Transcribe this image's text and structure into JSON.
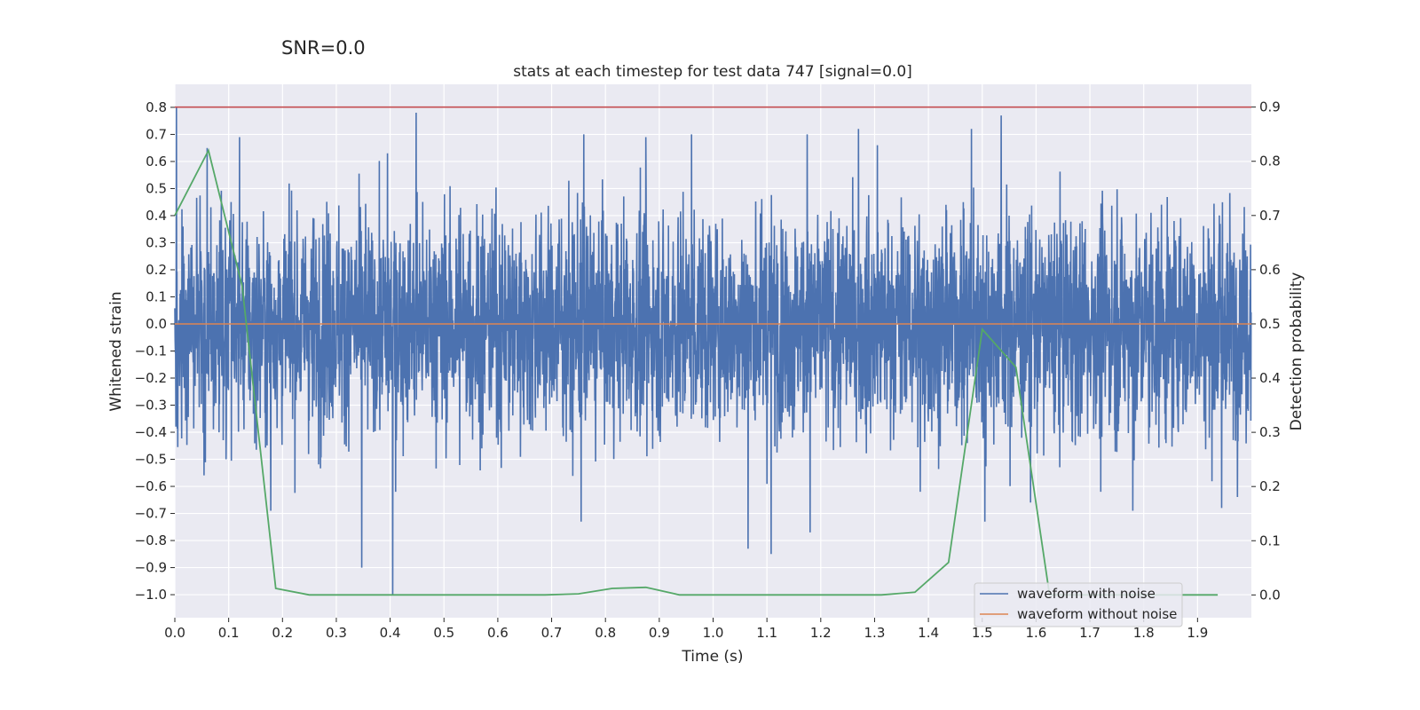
{
  "figure": {
    "suptitle": "SNR=0.0",
    "title": "stats at each timestep for test data 747 [signal=0.0]",
    "xlabel": "Time (s)",
    "ylabel_left": "Whitened strain",
    "ylabel_right": "Detection probability"
  },
  "colors": {
    "plot_bg": "#EAEAF2",
    "grid": "#FFFFFF",
    "noisy": "#4C72B0",
    "clean": "#DD8452",
    "prob": "#55A868",
    "threshold": "#C44E52"
  },
  "chart_data": {
    "type": "line",
    "xlim": [
      0.0,
      2.0
    ],
    "ylim_left": [
      -1.085,
      0.885
    ],
    "ylim_right": [
      -0.042,
      0.942
    ],
    "x_ticks": [
      "0.0",
      "0.1",
      "0.2",
      "0.3",
      "0.4",
      "0.5",
      "0.6",
      "0.7",
      "0.8",
      "0.9",
      "1.0",
      "1.1",
      "1.2",
      "1.3",
      "1.4",
      "1.5",
      "1.6",
      "1.7",
      "1.8",
      "1.9"
    ],
    "y_left_ticks": [
      "0.8",
      "0.7",
      "0.6",
      "0.5",
      "0.4",
      "0.3",
      "0.2",
      "0.1",
      "0.0",
      "−0.1",
      "−0.2",
      "−0.3",
      "−0.4",
      "−0.5",
      "−0.6",
      "−0.7",
      "−0.8",
      "−0.9",
      "−1.0"
    ],
    "y_right_ticks": [
      "0.9",
      "0.8",
      "0.7",
      "0.6",
      "0.5",
      "0.4",
      "0.3",
      "0.2",
      "0.1",
      "0.0"
    ],
    "grid": true,
    "legend_position": "lower right",
    "series": [
      {
        "name": "waveform with noise",
        "axis": "left",
        "noise_sample_rate_hz": 2048,
        "noise_duration_s": 2.0,
        "noise_amplitude_range": [
          -1.0,
          0.8
        ],
        "spikes": [
          {
            "x": 0.003,
            "y": 0.8
          },
          {
            "x": 0.06,
            "y": 0.65
          },
          {
            "x": 0.095,
            "y": -0.5
          },
          {
            "x": 0.12,
            "y": 0.69
          },
          {
            "x": 0.178,
            "y": -0.69
          },
          {
            "x": 0.347,
            "y": -0.9
          },
          {
            "x": 0.395,
            "y": 0.63
          },
          {
            "x": 0.405,
            "y": -1.0
          },
          {
            "x": 0.41,
            "y": -0.62
          },
          {
            "x": 0.448,
            "y": 0.78
          },
          {
            "x": 0.755,
            "y": -0.73
          },
          {
            "x": 0.76,
            "y": 0.7
          },
          {
            "x": 0.875,
            "y": 0.69
          },
          {
            "x": 0.96,
            "y": 0.7
          },
          {
            "x": 1.065,
            "y": -0.83
          },
          {
            "x": 1.108,
            "y": -0.85
          },
          {
            "x": 1.18,
            "y": -0.77
          },
          {
            "x": 1.175,
            "y": 0.7
          },
          {
            "x": 1.27,
            "y": 0.72
          },
          {
            "x": 1.305,
            "y": 0.66
          },
          {
            "x": 1.385,
            "y": -0.62
          },
          {
            "x": 1.48,
            "y": 0.72
          },
          {
            "x": 1.505,
            "y": -0.73
          },
          {
            "x": 1.535,
            "y": 0.77
          },
          {
            "x": 1.59,
            "y": -0.66
          },
          {
            "x": 1.72,
            "y": -0.62
          },
          {
            "x": 1.78,
            "y": -0.69
          },
          {
            "x": 1.945,
            "y": -0.68
          }
        ]
      },
      {
        "name": "waveform without noise",
        "axis": "left",
        "x": [
          0.0,
          2.0
        ],
        "y": [
          0.0,
          0.0
        ]
      },
      {
        "name": "detection probability",
        "axis": "right",
        "x": [
          0.0,
          0.0625,
          0.125,
          0.1875,
          0.25,
          0.3125,
          0.375,
          0.4375,
          0.5,
          0.5625,
          0.625,
          0.6875,
          0.75,
          0.8125,
          0.875,
          0.9375,
          1.0,
          1.0625,
          1.125,
          1.1875,
          1.25,
          1.3125,
          1.375,
          1.4375,
          1.5,
          1.5625,
          1.625,
          1.6875,
          1.75,
          1.8125,
          1.875,
          1.9375
        ],
        "y": [
          0.7,
          0.82,
          0.57,
          0.012,
          0.0,
          0.0,
          0.0,
          0.0,
          0.0,
          0.0,
          0.0,
          0.0,
          0.002,
          0.012,
          0.014,
          0.0,
          0.0,
          0.0,
          0.0,
          0.0,
          0.0,
          0.0,
          0.005,
          0.06,
          0.49,
          0.42,
          0.0,
          0.0,
          0.0,
          0.0,
          0.0,
          0.0
        ]
      },
      {
        "name": "threshold",
        "axis": "right",
        "x": [
          0.0,
          2.0
        ],
        "y": [
          0.9,
          0.9
        ]
      }
    ]
  }
}
